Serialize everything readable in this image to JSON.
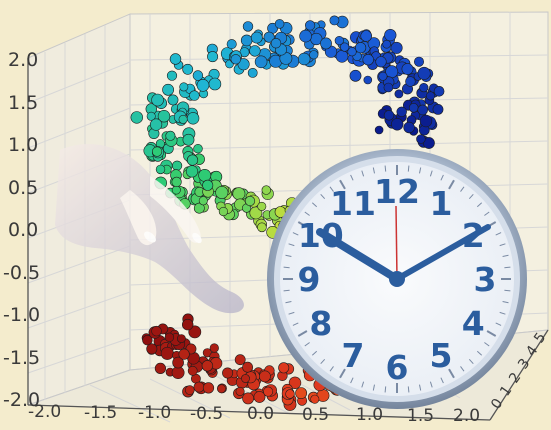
{
  "plot": {
    "y_ticks": [
      "2.0",
      "1.5",
      "1.0",
      "0.5",
      "0.0",
      "-0.5",
      "-1.0",
      "-1.5",
      "-2.0"
    ],
    "x_ticks": [
      "-2.0",
      "-1.5",
      "-1.0",
      "-0.5",
      "0.0",
      "0.5",
      "1.0",
      "1.5",
      "2.0"
    ],
    "z_ticks": [
      "0",
      "1",
      "2",
      "3",
      "4",
      "5"
    ],
    "colormap": [
      "#0a1a8c",
      "#1a56d6",
      "#1fb7d4",
      "#2ecc71",
      "#f1e22b",
      "#f39c12",
      "#e03a1e",
      "#8b0d0d"
    ]
  },
  "clock": {
    "numerals": [
      "12",
      "1",
      "2",
      "3",
      "4",
      "5",
      "6",
      "7",
      "8",
      "9",
      "10",
      "11"
    ],
    "face_color": "#2b5d9e"
  }
}
